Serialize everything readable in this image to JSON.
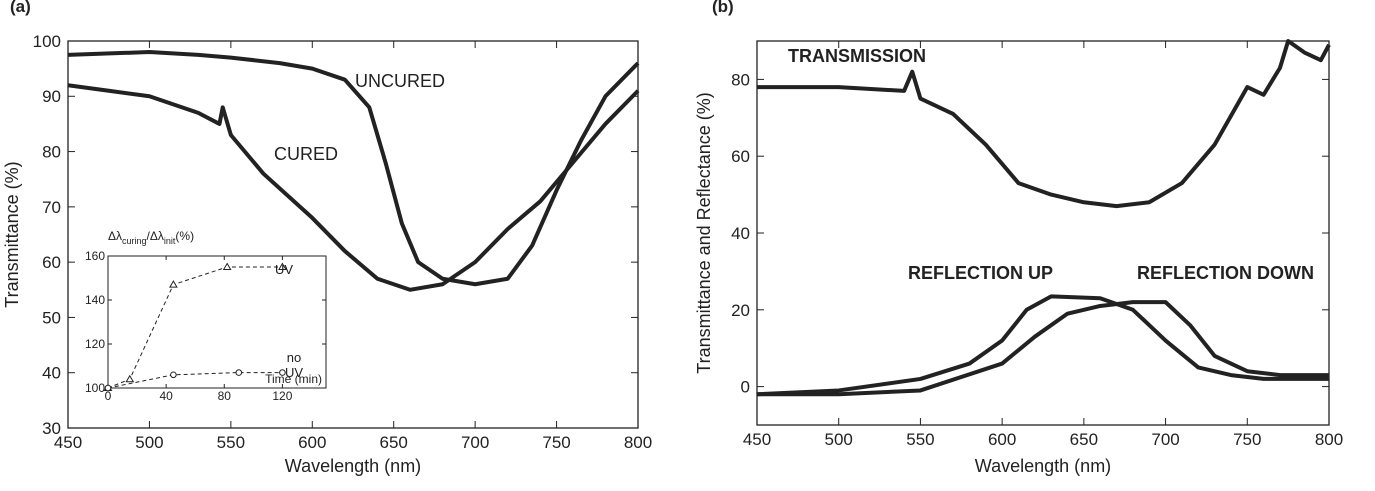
{
  "chart_data": [
    {
      "type": "line",
      "title": "(a)",
      "xlabel": "Wavelength (nm)",
      "ylabel": "Transmittance (%)",
      "xlim": [
        450,
        800
      ],
      "ylim": [
        30,
        100
      ],
      "xticks": [
        450,
        500,
        550,
        600,
        650,
        700,
        750,
        800
      ],
      "yticks": [
        30,
        40,
        50,
        60,
        70,
        80,
        90,
        100
      ],
      "series": [
        {
          "name": "UNCURED",
          "color": "#222222",
          "x": [
            450,
            480,
            500,
            530,
            550,
            580,
            600,
            620,
            635,
            645,
            655,
            665,
            680,
            700,
            720,
            735,
            750,
            765,
            780,
            800
          ],
          "values": [
            97.5,
            97.8,
            98,
            97.5,
            97,
            96,
            95,
            93,
            88,
            78,
            67,
            60,
            57,
            56,
            57,
            63,
            73,
            82,
            90,
            96
          ]
        },
        {
          "name": "CURED",
          "color": "#222222",
          "x": [
            450,
            475,
            500,
            530,
            543,
            545,
            550,
            570,
            600,
            620,
            640,
            660,
            680,
            700,
            720,
            740,
            760,
            780,
            800
          ],
          "values": [
            92,
            91,
            90,
            87,
            85,
            88,
            83,
            76,
            68,
            62,
            57,
            55,
            56,
            60,
            66,
            71,
            78,
            85,
            91
          ]
        }
      ]
    },
    {
      "type": "line",
      "title": "(b)",
      "xlabel": "Wavelength (nm)",
      "ylabel": "Transmittance and Reflectance (%)",
      "xlim": [
        450,
        800
      ],
      "ylim": [
        -10,
        90
      ],
      "xticks": [
        450,
        500,
        550,
        600,
        650,
        700,
        750,
        800
      ],
      "yticks": [
        0,
        20,
        40,
        60,
        80
      ],
      "series": [
        {
          "name": "TRANSMISSION",
          "color": "#222222",
          "x": [
            450,
            500,
            540,
            545,
            550,
            570,
            590,
            610,
            630,
            650,
            670,
            690,
            710,
            730,
            750,
            760,
            770,
            775,
            785,
            795,
            800
          ],
          "values": [
            78,
            78,
            77,
            82,
            75,
            71,
            63,
            53,
            50,
            48,
            47,
            48,
            53,
            63,
            78,
            76,
            83,
            90,
            87,
            85,
            89
          ]
        },
        {
          "name": "REFLECTION UP",
          "color": "#222222",
          "x": [
            450,
            500,
            550,
            580,
            600,
            615,
            630,
            660,
            680,
            700,
            720,
            740,
            760,
            780,
            800
          ],
          "values": [
            -2,
            -1,
            2,
            6,
            12,
            20,
            23.5,
            23,
            20,
            12,
            5,
            3,
            2,
            2,
            2
          ]
        },
        {
          "name": "REFLECTION DOWN",
          "color": "#222222",
          "x": [
            450,
            500,
            550,
            600,
            620,
            640,
            660,
            680,
            700,
            715,
            730,
            750,
            770,
            800
          ],
          "values": [
            -2,
            -2,
            -1,
            6,
            13,
            19,
            21,
            22,
            22,
            16,
            8,
            4,
            3,
            3
          ]
        }
      ]
    },
    {
      "type": "inset",
      "xlabel": "Time (min)",
      "ylabel_parts": [
        "Δλ",
        "curing",
        "/Δλ",
        "init",
        "(%)"
      ],
      "xlim": [
        0,
        150
      ],
      "ylim": [
        100,
        160
      ],
      "xticks": [
        0,
        40,
        80,
        120
      ],
      "yticks": [
        100,
        120,
        140,
        160
      ],
      "series": [
        {
          "name": "UV",
          "color": "#222222",
          "marker": "triangle",
          "x": [
            0,
            15,
            45,
            82,
            120
          ],
          "values": [
            100,
            104,
            147,
            155,
            155
          ]
        },
        {
          "name": "no UV",
          "color": "#222222",
          "marker": "circle",
          "x": [
            0,
            45,
            90,
            120
          ],
          "values": [
            100,
            106,
            107,
            107
          ]
        }
      ]
    }
  ]
}
